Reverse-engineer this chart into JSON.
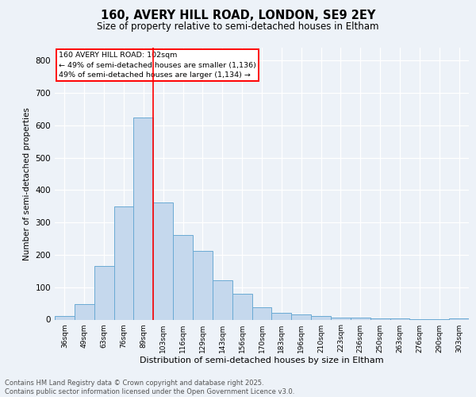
{
  "title1": "160, AVERY HILL ROAD, LONDON, SE9 2EY",
  "title2": "Size of property relative to semi-detached houses in Eltham",
  "xlabel": "Distribution of semi-detached houses by size in Eltham",
  "ylabel": "Number of semi-detached properties",
  "categories": [
    "36sqm",
    "49sqm",
    "63sqm",
    "76sqm",
    "89sqm",
    "103sqm",
    "116sqm",
    "129sqm",
    "143sqm",
    "156sqm",
    "170sqm",
    "183sqm",
    "196sqm",
    "210sqm",
    "223sqm",
    "236sqm",
    "250sqm",
    "263sqm",
    "276sqm",
    "290sqm",
    "303sqm"
  ],
  "values": [
    10,
    47,
    165,
    350,
    625,
    362,
    260,
    211,
    122,
    80,
    37,
    22,
    17,
    11,
    5,
    5,
    4,
    3,
    2,
    1,
    4
  ],
  "bar_color": "#c5d8ed",
  "bar_edge_color": "#6aaad4",
  "annotation_text1": "160 AVERY HILL ROAD: 102sqm",
  "annotation_text2": "← 49% of semi-detached houses are smaller (1,136)",
  "annotation_text3": "49% of semi-detached houses are larger (1,134) →",
  "footer_text": "Contains HM Land Registry data © Crown copyright and database right 2025.\nContains public sector information licensed under the Open Government Licence v3.0.",
  "ylim": [
    0,
    840
  ],
  "yticks": [
    0,
    100,
    200,
    300,
    400,
    500,
    600,
    700,
    800
  ],
  "bg_color": "#edf2f8",
  "grid_color": "#ffffff",
  "red_line_x": 4.5
}
